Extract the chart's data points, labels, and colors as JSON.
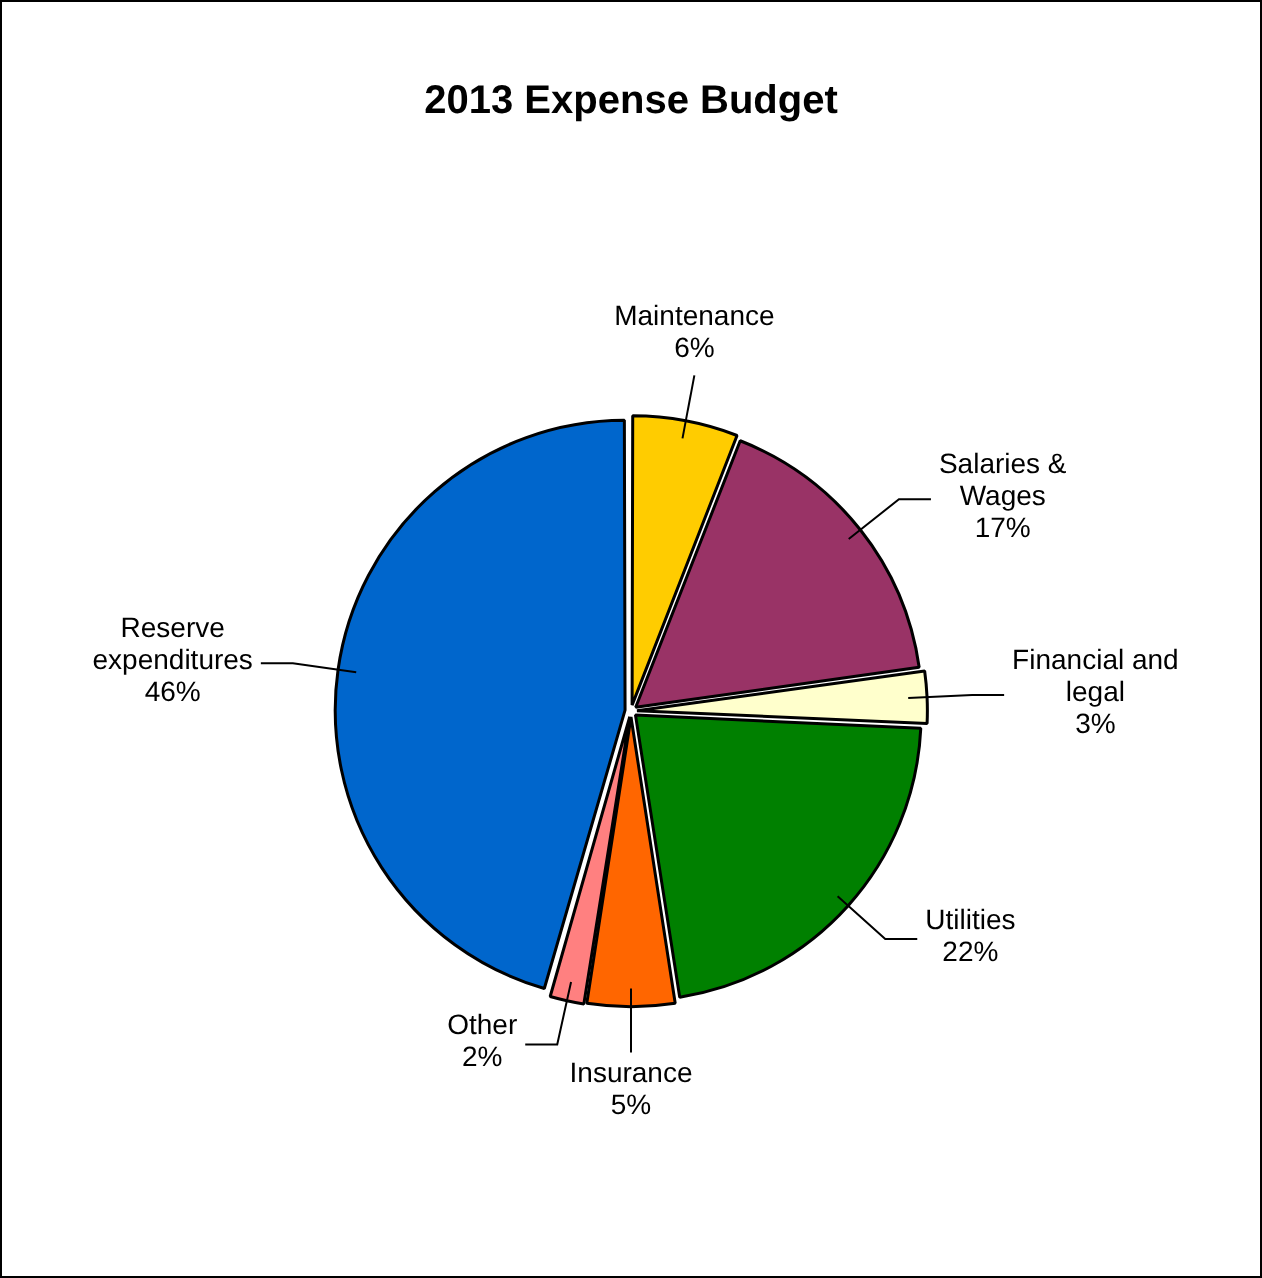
{
  "chart_data": {
    "type": "pie",
    "title": "2013 Expense Budget",
    "categories": [
      "Maintenance",
      "Salaries & Wages",
      "Financial and legal",
      "Utilities",
      "Insurance",
      "Other",
      "Reserve expenditures"
    ],
    "values": [
      6,
      17,
      3,
      22,
      5,
      2,
      46
    ],
    "value_labels": [
      "6%",
      "17%",
      "3%",
      "22%",
      "5%",
      "2%",
      "46%"
    ],
    "colors": [
      "#ffcc00",
      "#993366",
      "#ffffcc",
      "#008000",
      "#ff6600",
      "#ff8080",
      "#0066cc"
    ],
    "legend": false
  }
}
